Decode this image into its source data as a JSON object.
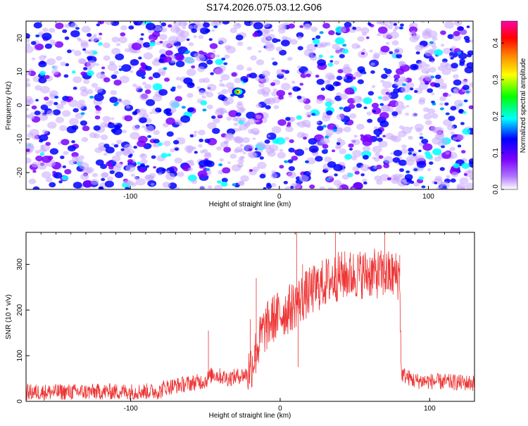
{
  "title": "S174.2026.075.03.12.G06",
  "chart_data": [
    {
      "type": "heatmap",
      "xlabel": "Height of straight line (km)",
      "ylabel": "Frequency (Hz)",
      "xlim": [
        -170,
        130
      ],
      "ylim": [
        -25,
        25
      ],
      "xticks": [
        -100,
        0,
        100
      ],
      "yticks": [
        -20,
        -10,
        0,
        10,
        20
      ],
      "colorbar": {
        "label": "Normalized spectral amplitude",
        "range": [
          0.0,
          0.46
        ],
        "ticks": [
          0.0,
          0.1,
          0.2,
          0.3,
          0.4
        ],
        "colors": [
          "#ffffff",
          "#7a00ff",
          "#0000ff",
          "#00ffff",
          "#00ff00",
          "#ffff00",
          "#ff8000",
          "#ff0000",
          "#ff00ff"
        ]
      },
      "hotspot": {
        "x": -28,
        "y": 4,
        "value": 0.46
      }
    },
    {
      "type": "line",
      "xlabel": "Height of straight line (km)",
      "ylabel": "SNR (10 * v/v)",
      "xlim": [
        -170,
        130
      ],
      "ylim": [
        0,
        370
      ],
      "xticks": [
        -100,
        0,
        100
      ],
      "yticks": [
        0,
        100,
        200,
        300
      ],
      "color": "#ee3333",
      "envelope": [
        {
          "x": -170,
          "y": 20
        },
        {
          "x": -80,
          "y": 22
        },
        {
          "x": -78,
          "y": 30
        },
        {
          "x": -50,
          "y": 45
        },
        {
          "x": -45,
          "y": 60
        },
        {
          "x": -35,
          "y": 50
        },
        {
          "x": -22,
          "y": 60
        },
        {
          "x": -18,
          "y": 90
        },
        {
          "x": -12,
          "y": 150
        },
        {
          "x": -5,
          "y": 180
        },
        {
          "x": 5,
          "y": 200
        },
        {
          "x": 20,
          "y": 240
        },
        {
          "x": 30,
          "y": 260
        },
        {
          "x": 40,
          "y": 275
        },
        {
          "x": 60,
          "y": 280
        },
        {
          "x": 80,
          "y": 275
        },
        {
          "x": 81,
          "y": 60
        },
        {
          "x": 90,
          "y": 45
        },
        {
          "x": 130,
          "y": 40
        }
      ],
      "spikes": [
        {
          "x": -48,
          "y": 155
        },
        {
          "x": -20,
          "y": 180
        },
        {
          "x": -16,
          "y": 270
        },
        {
          "x": 11,
          "y": 370
        },
        {
          "x": 15,
          "y": 300
        },
        {
          "x": 12,
          "y": 75
        },
        {
          "x": 37,
          "y": 370
        },
        {
          "x": 70,
          "y": 370
        },
        {
          "x": 80,
          "y": 320
        }
      ]
    }
  ]
}
